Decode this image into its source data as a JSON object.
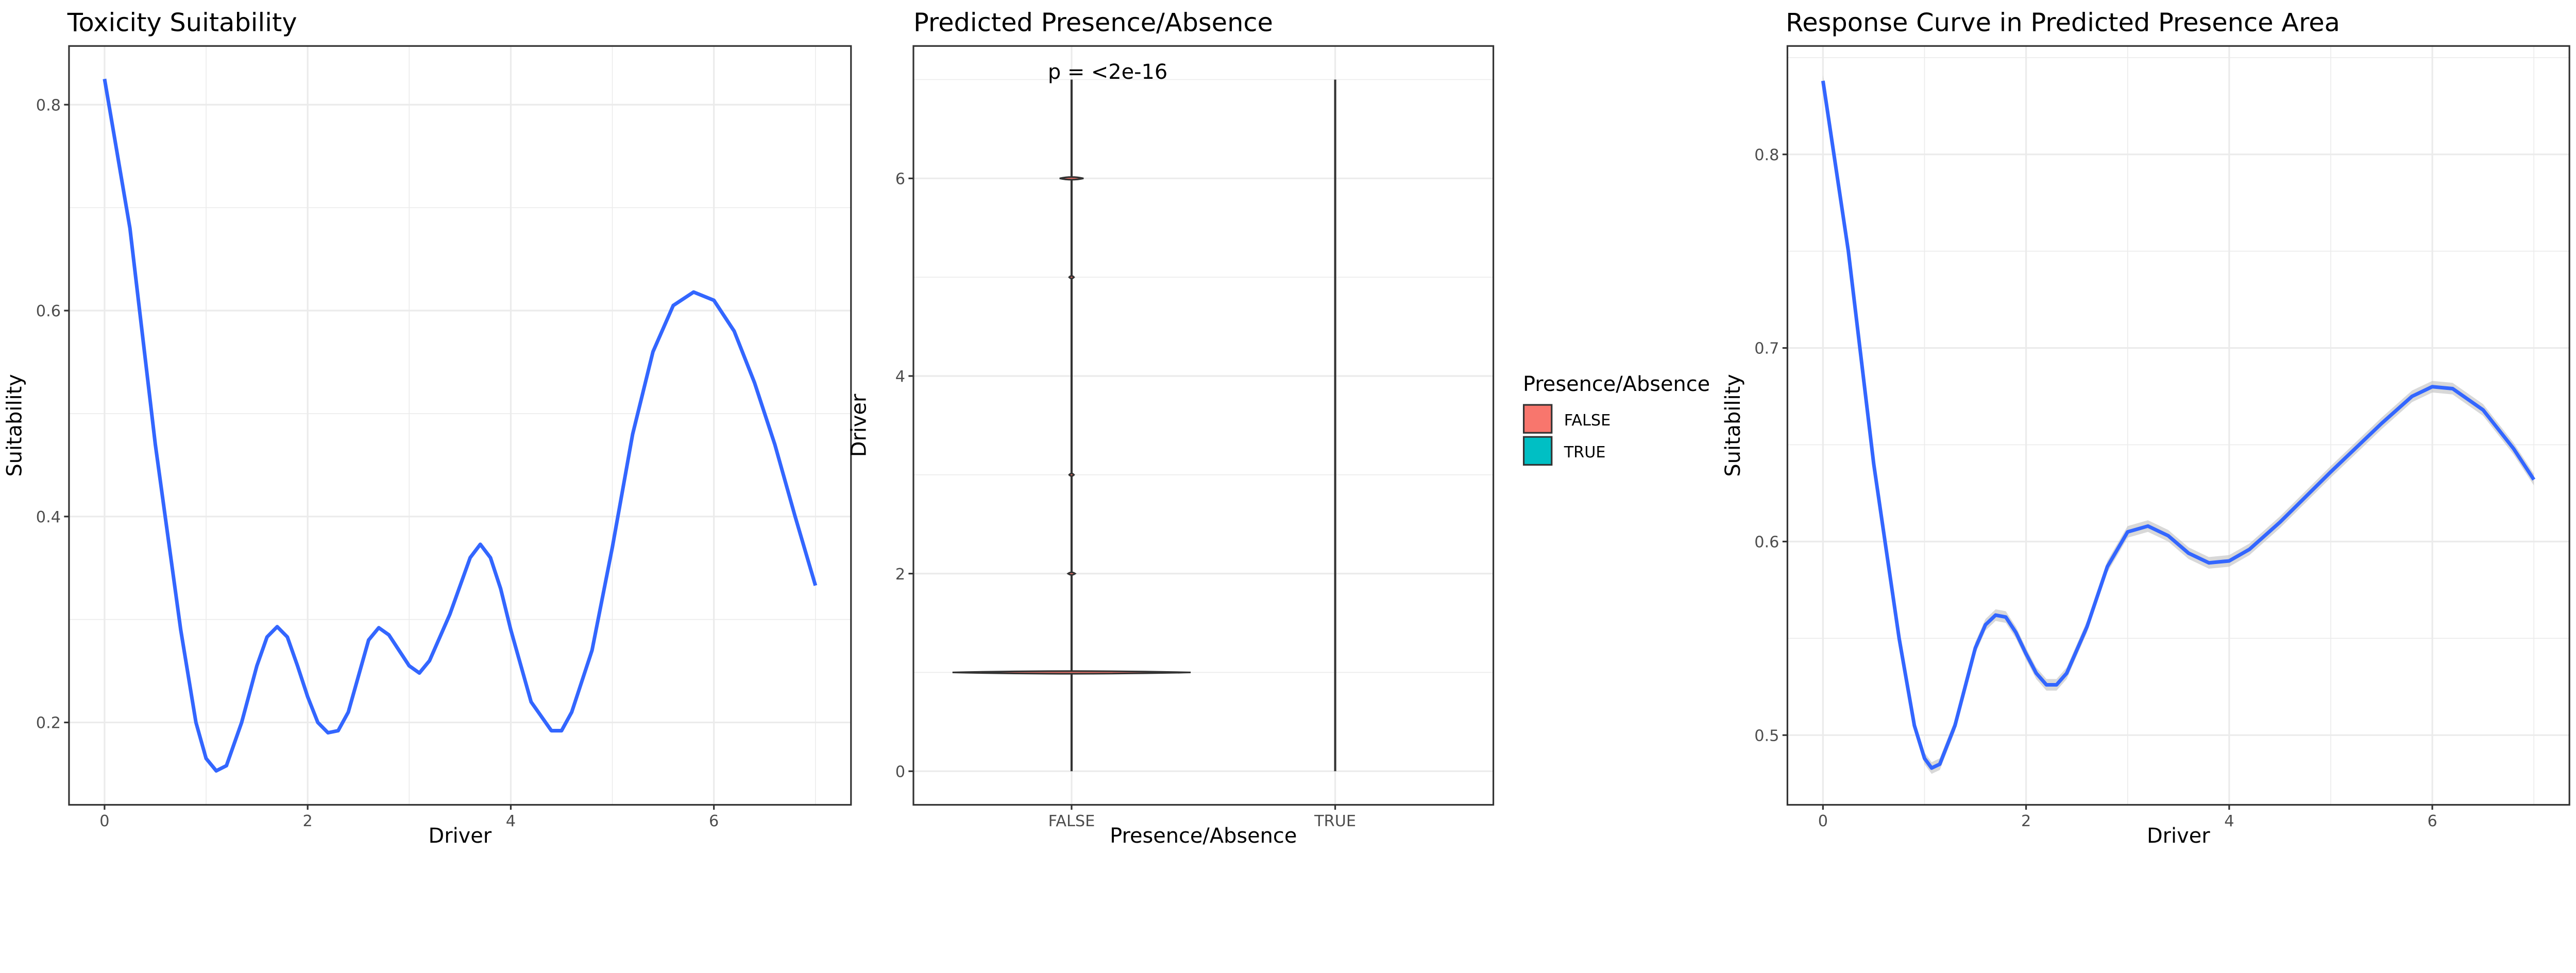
{
  "chart_data": [
    {
      "type": "line",
      "title": "Toxicity Suitability",
      "xlabel": "Driver",
      "ylabel": "Suitability",
      "xlim": [
        -0.35,
        7.35
      ],
      "ylim": [
        0.12,
        0.857
      ],
      "xticks": [
        0,
        2,
        4,
        6
      ],
      "yticks": [
        0.2,
        0.4,
        0.6,
        0.8
      ],
      "xminor": [
        1,
        3,
        5,
        7
      ],
      "yminor": [
        0.3,
        0.5,
        0.7
      ],
      "grid": true,
      "line_color": "#3366FF",
      "x": [
        0,
        0.25,
        0.5,
        0.75,
        0.9,
        1.0,
        1.1,
        1.2,
        1.35,
        1.5,
        1.6,
        1.7,
        1.8,
        1.9,
        2.0,
        2.1,
        2.2,
        2.3,
        2.4,
        2.5,
        2.6,
        2.7,
        2.8,
        2.9,
        3.0,
        3.1,
        3.2,
        3.4,
        3.6,
        3.7,
        3.8,
        3.9,
        4.0,
        4.2,
        4.4,
        4.5,
        4.6,
        4.8,
        5.0,
        5.2,
        5.4,
        5.6,
        5.8,
        6.0,
        6.2,
        6.4,
        6.6,
        6.8,
        7.0
      ],
      "y": [
        0.825,
        0.68,
        0.47,
        0.29,
        0.2,
        0.165,
        0.153,
        0.158,
        0.2,
        0.255,
        0.283,
        0.293,
        0.283,
        0.255,
        0.225,
        0.2,
        0.19,
        0.192,
        0.21,
        0.245,
        0.28,
        0.292,
        0.285,
        0.27,
        0.255,
        0.248,
        0.26,
        0.305,
        0.36,
        0.373,
        0.36,
        0.33,
        0.29,
        0.22,
        0.192,
        0.192,
        0.21,
        0.27,
        0.37,
        0.48,
        0.56,
        0.605,
        0.618,
        0.61,
        0.58,
        0.53,
        0.47,
        0.4,
        0.333
      ]
    },
    {
      "type": "violin",
      "title": "Predicted Presence/Absence",
      "xlabel": "Presence/Absence",
      "ylabel": "Driver",
      "categories": [
        "FALSE",
        "TRUE"
      ],
      "ylim": [
        -0.34,
        7.34
      ],
      "yticks": [
        0,
        2,
        4,
        6
      ],
      "yminor": [
        1,
        3,
        5,
        7
      ],
      "grid": true,
      "range": [
        [
          0,
          7
        ],
        [
          0,
          7
        ]
      ],
      "false_density_peaks": [
        {
          "y": 1,
          "rel_width": 1.0
        },
        {
          "y": 6,
          "rel_width": 0.1
        },
        {
          "y": 5,
          "rel_width": 0.02
        },
        {
          "y": 3,
          "rel_width": 0.02
        },
        {
          "y": 2,
          "rel_width": 0.03
        }
      ],
      "annotation": "p = <2e-16",
      "legend": {
        "title": "Presence/Absence",
        "position": "right",
        "entries": [
          {
            "label": "FALSE",
            "color": "#F8766D"
          },
          {
            "label": "TRUE",
            "color": "#00BFC4"
          }
        ]
      }
    },
    {
      "type": "line",
      "title": "Response Curve in Predicted Presence Area",
      "xlabel": "Driver",
      "ylabel": "Suitability",
      "xlim": [
        -0.35,
        7.35
      ],
      "ylim": [
        0.464,
        0.856
      ],
      "xticks": [
        0,
        2,
        4,
        6
      ],
      "yticks": [
        0.5,
        0.6,
        0.7,
        0.8
      ],
      "xminor": [
        1,
        3,
        5,
        7
      ],
      "yminor": [
        0.55,
        0.65,
        0.75,
        0.85
      ],
      "grid": true,
      "line_color": "#3366FF",
      "ribbon_color": "#BEBEBE",
      "x": [
        0,
        0.25,
        0.5,
        0.75,
        0.9,
        1.0,
        1.07,
        1.15,
        1.3,
        1.5,
        1.6,
        1.7,
        1.8,
        1.9,
        2.0,
        2.1,
        2.2,
        2.3,
        2.4,
        2.6,
        2.8,
        3.0,
        3.2,
        3.4,
        3.6,
        3.8,
        4.0,
        4.2,
        4.5,
        5.0,
        5.5,
        5.8,
        6.0,
        6.2,
        6.5,
        6.8,
        7.0
      ],
      "y": [
        0.838,
        0.75,
        0.64,
        0.55,
        0.505,
        0.488,
        0.483,
        0.485,
        0.505,
        0.545,
        0.557,
        0.562,
        0.561,
        0.553,
        0.542,
        0.532,
        0.526,
        0.526,
        0.532,
        0.556,
        0.587,
        0.605,
        0.608,
        0.603,
        0.594,
        0.589,
        0.59,
        0.596,
        0.61,
        0.636,
        0.661,
        0.675,
        0.68,
        0.679,
        0.668,
        0.648,
        0.632
      ]
    }
  ]
}
